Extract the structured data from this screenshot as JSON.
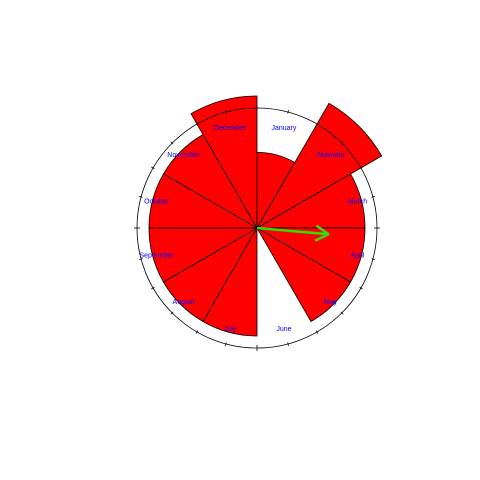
{
  "chart_data": {
    "type": "rose",
    "title": "",
    "direction": "clockwise",
    "zero_at": "north",
    "categories": [
      "January",
      "February",
      "March",
      "April",
      "May",
      "June",
      "July",
      "August",
      "September",
      "October",
      "November",
      "December"
    ],
    "values": [
      0.63,
      1.2,
      0.9,
      0.9,
      0.9,
      0.0,
      0.9,
      0.9,
      0.9,
      0.9,
      0.9,
      1.1
    ],
    "radial_max": 1.0,
    "mean_direction_deg": 95,
    "mean_resultant_length": 0.6,
    "ticks_per_ring": 24,
    "colors": {
      "fill": "#ff0000",
      "outline": "#000000",
      "labels": "#0000ff",
      "arrow": "#33dd00"
    }
  }
}
